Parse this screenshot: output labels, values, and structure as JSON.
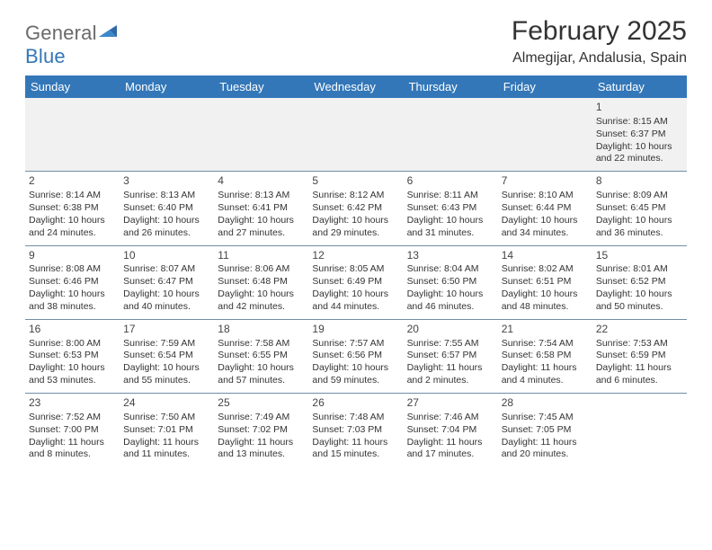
{
  "logo": {
    "text1": "General",
    "text2": "Blue"
  },
  "title": "February 2025",
  "location": "Almegijar, Andalusia, Spain",
  "header_color": "#3377b8",
  "row_border_color": "#6f8ea8",
  "page_bg": "#ffffff",
  "first_row_bg": "#f1f1f1",
  "text_color": "#333333",
  "font_family": "Arial",
  "daynames": [
    "Sunday",
    "Monday",
    "Tuesday",
    "Wednesday",
    "Thursday",
    "Friday",
    "Saturday"
  ],
  "weeks": [
    [
      null,
      null,
      null,
      null,
      null,
      null,
      {
        "n": "1",
        "sr": "8:15 AM",
        "ss": "6:37 PM",
        "dl": "10 hours and 22 minutes."
      }
    ],
    [
      {
        "n": "2",
        "sr": "8:14 AM",
        "ss": "6:38 PM",
        "dl": "10 hours and 24 minutes."
      },
      {
        "n": "3",
        "sr": "8:13 AM",
        "ss": "6:40 PM",
        "dl": "10 hours and 26 minutes."
      },
      {
        "n": "4",
        "sr": "8:13 AM",
        "ss": "6:41 PM",
        "dl": "10 hours and 27 minutes."
      },
      {
        "n": "5",
        "sr": "8:12 AM",
        "ss": "6:42 PM",
        "dl": "10 hours and 29 minutes."
      },
      {
        "n": "6",
        "sr": "8:11 AM",
        "ss": "6:43 PM",
        "dl": "10 hours and 31 minutes."
      },
      {
        "n": "7",
        "sr": "8:10 AM",
        "ss": "6:44 PM",
        "dl": "10 hours and 34 minutes."
      },
      {
        "n": "8",
        "sr": "8:09 AM",
        "ss": "6:45 PM",
        "dl": "10 hours and 36 minutes."
      }
    ],
    [
      {
        "n": "9",
        "sr": "8:08 AM",
        "ss": "6:46 PM",
        "dl": "10 hours and 38 minutes."
      },
      {
        "n": "10",
        "sr": "8:07 AM",
        "ss": "6:47 PM",
        "dl": "10 hours and 40 minutes."
      },
      {
        "n": "11",
        "sr": "8:06 AM",
        "ss": "6:48 PM",
        "dl": "10 hours and 42 minutes."
      },
      {
        "n": "12",
        "sr": "8:05 AM",
        "ss": "6:49 PM",
        "dl": "10 hours and 44 minutes."
      },
      {
        "n": "13",
        "sr": "8:04 AM",
        "ss": "6:50 PM",
        "dl": "10 hours and 46 minutes."
      },
      {
        "n": "14",
        "sr": "8:02 AM",
        "ss": "6:51 PM",
        "dl": "10 hours and 48 minutes."
      },
      {
        "n": "15",
        "sr": "8:01 AM",
        "ss": "6:52 PM",
        "dl": "10 hours and 50 minutes."
      }
    ],
    [
      {
        "n": "16",
        "sr": "8:00 AM",
        "ss": "6:53 PM",
        "dl": "10 hours and 53 minutes."
      },
      {
        "n": "17",
        "sr": "7:59 AM",
        "ss": "6:54 PM",
        "dl": "10 hours and 55 minutes."
      },
      {
        "n": "18",
        "sr": "7:58 AM",
        "ss": "6:55 PM",
        "dl": "10 hours and 57 minutes."
      },
      {
        "n": "19",
        "sr": "7:57 AM",
        "ss": "6:56 PM",
        "dl": "10 hours and 59 minutes."
      },
      {
        "n": "20",
        "sr": "7:55 AM",
        "ss": "6:57 PM",
        "dl": "11 hours and 2 minutes."
      },
      {
        "n": "21",
        "sr": "7:54 AM",
        "ss": "6:58 PM",
        "dl": "11 hours and 4 minutes."
      },
      {
        "n": "22",
        "sr": "7:53 AM",
        "ss": "6:59 PM",
        "dl": "11 hours and 6 minutes."
      }
    ],
    [
      {
        "n": "23",
        "sr": "7:52 AM",
        "ss": "7:00 PM",
        "dl": "11 hours and 8 minutes."
      },
      {
        "n": "24",
        "sr": "7:50 AM",
        "ss": "7:01 PM",
        "dl": "11 hours and 11 minutes."
      },
      {
        "n": "25",
        "sr": "7:49 AM",
        "ss": "7:02 PM",
        "dl": "11 hours and 13 minutes."
      },
      {
        "n": "26",
        "sr": "7:48 AM",
        "ss": "7:03 PM",
        "dl": "11 hours and 15 minutes."
      },
      {
        "n": "27",
        "sr": "7:46 AM",
        "ss": "7:04 PM",
        "dl": "11 hours and 17 minutes."
      },
      {
        "n": "28",
        "sr": "7:45 AM",
        "ss": "7:05 PM",
        "dl": "11 hours and 20 minutes."
      },
      null
    ]
  ],
  "labels": {
    "sunrise": "Sunrise:",
    "sunset": "Sunset:",
    "daylight": "Daylight:"
  }
}
